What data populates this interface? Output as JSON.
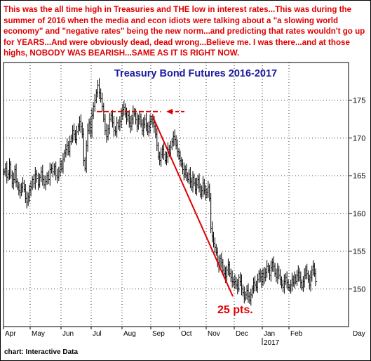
{
  "note": "This was the all time high in Treasuries and THE low in interest rates...This was during the summer of 2016 when the media and econ idiots were talking about a \"a slowing world economy\" and \"negative rates\" being the new norm...and predicting that rates wouldn't go up for YEARS...And were obviously dead, dead wrong...Believe me. I was there...and at those highs, NOBODY WAS BEARISH...SAME AS IT IS RIGHT NOW.",
  "source": "chart: Interactive Data",
  "colors": {
    "annotation": "#e00000",
    "title": "#1a1aa0",
    "bars": "#000000",
    "grid": "#000000"
  },
  "chart_data": {
    "type": "ohlc",
    "title": "Treasury Bond Futures 2016-2017",
    "xlabel": "",
    "ylabel": "",
    "ylim": [
      145,
      180
    ],
    "yticks": [
      150,
      155,
      160,
      165,
      170,
      175
    ],
    "x_tick_labels": [
      "Apr",
      "May",
      "Jun",
      "Jul",
      "Aug",
      "Sep",
      "Oct",
      "Nov",
      "Dec",
      "Jan",
      "Feb"
    ],
    "x_year_label": {
      "text": "2017",
      "under": "Jan"
    },
    "x_axis_unit": "Day",
    "grid": "dotted",
    "months": [
      {
        "label": "Apr",
        "closes": [
          165.5,
          166.0,
          164.8,
          165.2,
          166.5,
          165.0,
          164.0,
          164.5,
          165.8,
          164.2,
          163.5,
          163.0,
          162.8,
          163.5,
          164.0,
          163.2,
          162.0,
          161.5,
          162.2,
          163.0
        ]
      },
      {
        "label": "May",
        "closes": [
          163.5,
          164.5,
          164.0,
          165.2,
          164.6,
          163.8,
          164.8,
          165.5,
          164.5,
          163.8,
          164.2,
          165.0,
          164.5,
          165.8,
          166.0,
          165.5,
          166.2,
          165.0,
          164.8,
          165.6,
          166.5
        ]
      },
      {
        "label": "Jun",
        "closes": [
          166.0,
          167.2,
          168.0,
          168.5,
          169.0,
          168.2,
          169.5,
          170.0,
          171.0,
          170.5,
          169.8,
          170.8,
          171.5,
          172.2,
          171.5,
          170.5,
          167.0,
          166.0,
          169.0,
          171.0,
          172.0,
          170.8
        ]
      },
      {
        "label": "Jul",
        "closes": [
          173.0,
          174.2,
          175.0,
          176.0,
          177.0,
          176.0,
          175.2,
          174.2,
          172.5,
          171.0,
          170.2,
          171.2,
          172.5,
          173.0,
          172.0,
          171.0,
          170.8,
          172.0,
          171.5,
          172.2,
          173.0
        ]
      },
      {
        "label": "Aug",
        "closes": [
          173.8,
          174.0,
          173.2,
          172.5,
          173.0,
          172.0,
          171.5,
          172.5,
          173.5,
          173.2,
          172.4,
          171.6,
          172.5,
          172.8,
          171.8,
          171.0,
          171.8,
          172.5,
          171.6,
          170.8,
          171.5,
          172.2
        ]
      },
      {
        "label": "Sep",
        "closes": [
          172.5,
          172.0,
          171.5,
          170.5,
          169.0,
          167.5,
          167.0,
          167.8,
          168.5,
          167.8,
          167.0,
          167.5,
          168.5,
          168.0,
          168.8,
          169.5,
          170.2,
          169.8,
          169.0,
          168.2,
          167.5
        ]
      },
      {
        "label": "Oct",
        "closes": [
          167.0,
          166.5,
          165.8,
          165.2,
          165.8,
          165.0,
          164.5,
          165.2,
          164.2,
          163.5,
          164.8,
          164.0,
          163.2,
          163.8,
          164.5,
          163.5,
          162.5,
          163.0,
          164.0,
          163.0,
          162.5
        ]
      },
      {
        "label": "Nov",
        "closes": [
          162.8,
          163.5,
          162.0,
          158.0,
          157.0,
          156.0,
          155.5,
          154.8,
          153.5,
          153.0,
          154.0,
          153.5,
          152.5,
          152.0,
          151.6,
          152.5,
          153.2,
          152.0,
          151.5,
          151.0,
          150.8
        ]
      },
      {
        "label": "Dec",
        "closes": [
          151.0,
          150.5,
          150.0,
          151.5,
          151.0,
          150.0,
          149.5,
          148.8,
          149.2,
          149.8,
          149.0,
          148.5,
          149.2,
          150.0,
          150.8,
          150.5,
          150.2,
          151.2,
          152.0,
          151.5,
          151.0
        ]
      },
      {
        "label": "Jan",
        "closes": [
          152.0,
          151.5,
          152.2,
          153.0,
          152.5,
          151.8,
          152.8,
          153.5,
          153.0,
          152.0,
          151.5,
          152.5,
          151.8,
          151.2,
          150.5,
          150.2,
          151.0,
          151.5,
          150.8,
          150.2
        ]
      },
      {
        "label": "Feb",
        "closes": [
          150.0,
          150.5,
          151.2,
          150.8,
          151.5,
          151.0,
          151.8,
          152.2,
          151.5,
          150.8,
          150.2,
          151.0,
          151.8,
          152.5,
          152.0,
          151.2,
          150.5,
          151.5,
          152.5,
          153.0,
          152.0,
          151.0
        ]
      }
    ],
    "annotations": {
      "high_level": 173.5,
      "high_span_months": [
        "Jul",
        "Sep"
      ],
      "decline_from": {
        "month": "Sep",
        "value": 173.0
      },
      "decline_to": {
        "month": "Dec",
        "value": 149.0
      },
      "decline_label": "25 pts."
    }
  }
}
